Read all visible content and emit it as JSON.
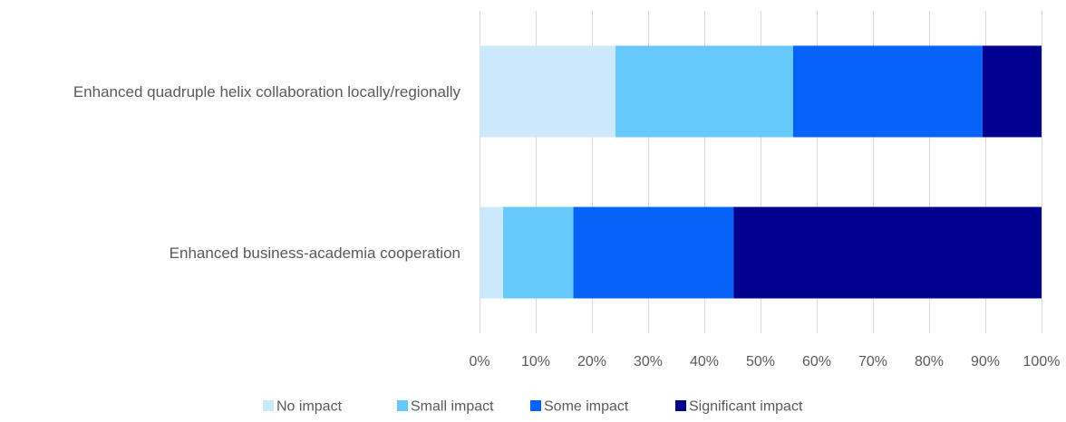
{
  "chart_data": {
    "type": "bar",
    "orientation": "horizontal",
    "stacked": "100%",
    "categories": [
      "Enhanced quadruple helix collaboration locally/regionally",
      "Enhanced business-academia cooperation"
    ],
    "series": [
      {
        "name": "No impact",
        "color": "#cce9fb",
        "values": [
          24.2,
          4.2
        ]
      },
      {
        "name": "Small impact",
        "color": "#66c8fb",
        "values": [
          31.6,
          12.5
        ]
      },
      {
        "name": "Some impact",
        "color": "#0563f9",
        "values": [
          33.7,
          28.5
        ]
      },
      {
        "name": "Significant impact",
        "color": "#00008f",
        "values": [
          10.5,
          54.8
        ]
      }
    ],
    "xlim": [
      0,
      100
    ],
    "xticks": [
      "0%",
      "10%",
      "20%",
      "30%",
      "40%",
      "50%",
      "60%",
      "70%",
      "80%",
      "90%",
      "100%"
    ],
    "grid": true,
    "legend": "bottom",
    "title": "",
    "xlabel": "",
    "ylabel": ""
  }
}
